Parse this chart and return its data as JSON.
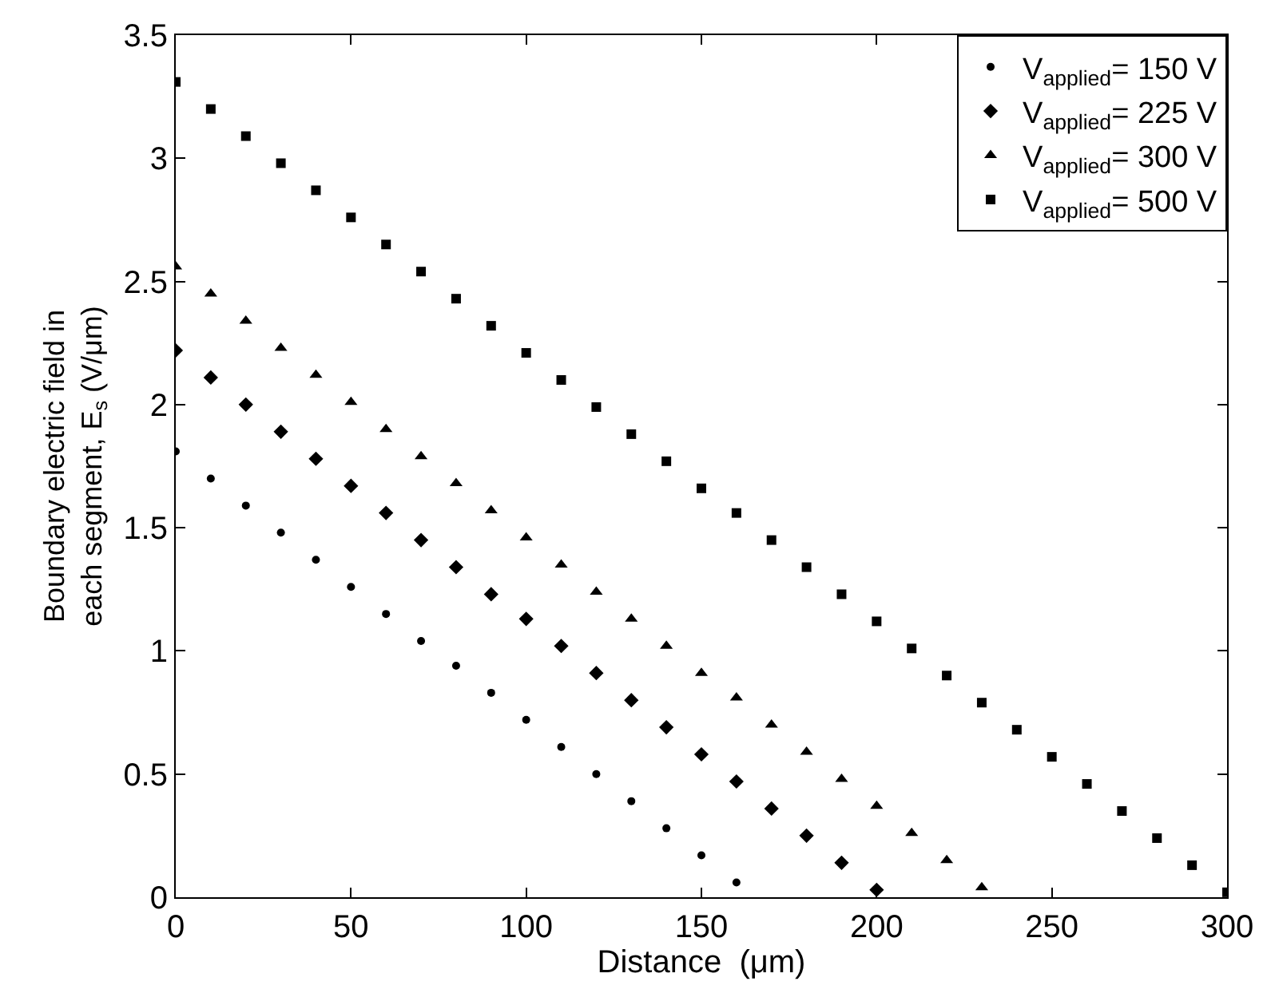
{
  "chart_data": {
    "type": "scatter",
    "xlabel": "Distance  (μm)",
    "ylabel": "Boundary electric field in\neach segment, E$_{s}$ (V/μm)",
    "xlim": [
      0,
      300
    ],
    "xticks": [
      0,
      50,
      100,
      150,
      200,
      250,
      300
    ],
    "ylim": [
      0,
      3.5
    ],
    "yticks": [
      0,
      0.5,
      1,
      1.5,
      2,
      2.5,
      3,
      3.5
    ],
    "grid": false,
    "legend": "top right",
    "series": [
      {
        "name": "V$_{applied}$= 150 V",
        "color": "#000000",
        "marker": "circle",
        "x": [
          0,
          10,
          20,
          30,
          40,
          50,
          60,
          70,
          80,
          90,
          100,
          110,
          120,
          130,
          140,
          150,
          160
        ],
        "values": [
          1.81,
          1.7,
          1.59,
          1.48,
          1.37,
          1.26,
          1.15,
          1.04,
          0.94,
          0.83,
          0.72,
          0.61,
          0.5,
          0.39,
          0.28,
          0.17,
          0.06
        ]
      },
      {
        "name": "V$_{applied}$= 225 V",
        "color": "#000000",
        "marker": "diamond",
        "x": [
          0,
          10,
          20,
          30,
          40,
          50,
          60,
          70,
          80,
          90,
          100,
          110,
          120,
          130,
          140,
          150,
          160,
          170,
          180,
          190,
          200
        ],
        "values": [
          2.22,
          2.11,
          2.0,
          1.89,
          1.78,
          1.67,
          1.56,
          1.45,
          1.34,
          1.23,
          1.13,
          1.02,
          0.91,
          0.8,
          0.69,
          0.58,
          0.47,
          0.36,
          0.25,
          0.14,
          0.03
        ]
      },
      {
        "name": "V$_{applied}$= 300 V",
        "color": "#000000",
        "marker": "triangle",
        "x": [
          0,
          10,
          20,
          30,
          40,
          50,
          60,
          70,
          80,
          90,
          100,
          110,
          120,
          130,
          140,
          150,
          160,
          170,
          180,
          190,
          200,
          210,
          220,
          230
        ],
        "values": [
          2.56,
          2.45,
          2.34,
          2.23,
          2.12,
          2.01,
          1.9,
          1.79,
          1.68,
          1.57,
          1.46,
          1.35,
          1.24,
          1.13,
          1.02,
          0.91,
          0.81,
          0.7,
          0.59,
          0.48,
          0.37,
          0.26,
          0.15,
          0.04
        ]
      },
      {
        "name": "V$_{applied}$= 500 V",
        "color": "#000000",
        "marker": "square",
        "x": [
          0,
          10,
          20,
          30,
          40,
          50,
          60,
          70,
          80,
          90,
          100,
          110,
          120,
          130,
          140,
          150,
          160,
          170,
          180,
          190,
          200,
          210,
          220,
          230,
          240,
          250,
          260,
          270,
          280,
          290,
          300
        ],
        "values": [
          3.31,
          3.2,
          3.09,
          2.98,
          2.87,
          2.76,
          2.65,
          2.54,
          2.43,
          2.32,
          2.21,
          2.1,
          1.99,
          1.88,
          1.77,
          1.66,
          1.56,
          1.45,
          1.34,
          1.23,
          1.12,
          1.01,
          0.9,
          0.79,
          0.68,
          0.57,
          0.46,
          0.35,
          0.24,
          0.13,
          0.02
        ]
      }
    ]
  }
}
